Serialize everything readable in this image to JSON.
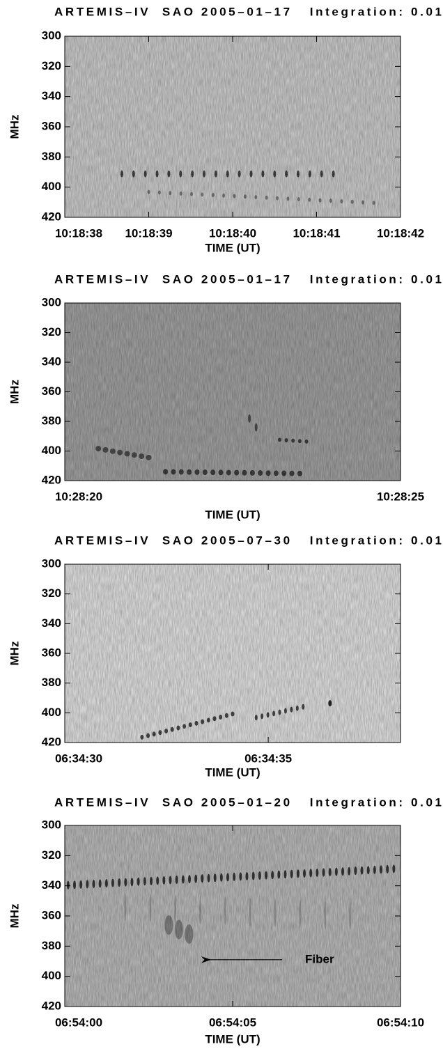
{
  "chart_data": [
    {
      "type": "spectrogram",
      "title": "ARTEMIS–IV  SAO 2005–01–17   Integration: 0.01",
      "ylabel": "MHz",
      "xlabel": "TIME (UT)",
      "ylim": [
        420,
        300
      ],
      "yticks": [
        300,
        320,
        340,
        360,
        380,
        400,
        420
      ],
      "xlim": [
        "10:18:38",
        "10:18:42"
      ],
      "xticks": [
        "10:18:38",
        "10:18:39",
        "10:18:40",
        "10:18:41",
        "10:18:42"
      ],
      "color": "#d6d6d6"
    },
    {
      "type": "spectrogram",
      "title": "ARTEMIS–IV  SAO 2005–01–17   Integration: 0.01",
      "ylabel": "MHz",
      "xlabel": "TIME (UT)",
      "ylim": [
        420,
        300
      ],
      "yticks": [
        300,
        320,
        340,
        360,
        380,
        400,
        420
      ],
      "xlim": [
        "10:28:20",
        "10:28:25"
      ],
      "xticks": [
        "10:28:20",
        "10:28:25"
      ],
      "color": "#a9a9a9"
    },
    {
      "type": "spectrogram",
      "title": "ARTEMIS–IV  SAO 2005–07–30   Integration: 0.01",
      "ylabel": "MHz",
      "xlabel": "TIME (UT)",
      "ylim": [
        420,
        300
      ],
      "yticks": [
        300,
        320,
        340,
        360,
        380,
        400,
        420
      ],
      "xlim": [
        "06:34:30",
        "06:34:38.25"
      ],
      "xticks": [
        "06:34:30",
        "06:34:35"
      ],
      "color": "#ececec"
    },
    {
      "type": "spectrogram",
      "title": "ARTEMIS–IV  SAO 2005–01–20   Integration: 0.01",
      "ylabel": "MHz",
      "xlabel": "TIME (UT)",
      "ylim": [
        420,
        300
      ],
      "yticks": [
        300,
        320,
        340,
        360,
        380,
        400,
        420
      ],
      "xlim": [
        "06:54:00",
        "06:54:10"
      ],
      "xticks": [
        "06:54:00",
        "06:54:05",
        "06:54:10"
      ],
      "color": "#c4c4c4",
      "annotation": "Fiber"
    }
  ]
}
